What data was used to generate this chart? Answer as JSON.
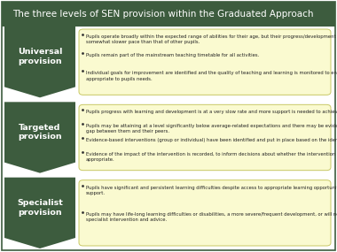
{
  "title": "The three levels of SEN provision within the Graduated Approach",
  "title_bg": "#3d5c3e",
  "title_color": "#ffffff",
  "title_fontsize": 7.5,
  "sections": [
    {
      "label": "Universal\nprovision",
      "label_color": "#ffffff",
      "arrow_color": "#3d5c3e",
      "box_color": "#fafad0",
      "box_border": "#c8c864",
      "bullets": [
        "Pupils operate broadly within the expected range of abilities for their age, but their progress/development may occur at a\nsomewhat slower pace than that of other pupils.",
        "Pupils remain part of the mainstream teaching timetable for all activities.",
        "Individual goals for improvement are identified and the quality of teaching and learning is monitored to ensure it is\nappropriate to pupils needs."
      ]
    },
    {
      "label": "Targeted\nprovision",
      "label_color": "#ffffff",
      "arrow_color": "#3d5c3e",
      "box_color": "#fafad0",
      "box_border": "#c8c864",
      "bullets": [
        "Pupils progress with learning and development is at a very slow rate and more support is needed to achieve this.",
        "Pupils may be attaining at a level significantly below average-related expectations and there may be evidence of an increasing\ngap between them and their peers.",
        "Evidence-based interventions (group or individual) have been identified and put in place based on the identified need.",
        "Evidence of the impact of the intervention is recorded, to inform decisions about whether the intervention still is\nappropriate."
      ]
    },
    {
      "label": "Specialist\nprovision",
      "label_color": "#ffffff",
      "arrow_color": "#3d5c3e",
      "box_color": "#fafad0",
      "box_border": "#c8c864",
      "bullets": [
        "Pupils have significant and persistent learning difficulties despite access to appropriate learning opportunities and\nsupport.",
        "Pupils may have life-long learning difficulties or disabilities, a more severe/frequent development, or will need to more\nspecialist intervention and advice."
      ]
    }
  ],
  "bg_color": "#ffffff",
  "border_color": "#3d5c3e"
}
